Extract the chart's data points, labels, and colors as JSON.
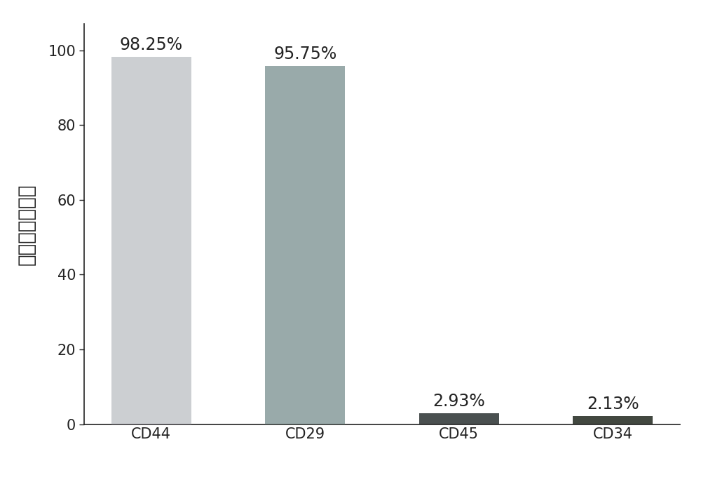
{
  "categories": [
    "CD44",
    "CD29",
    "CD45",
    "CD34"
  ],
  "values": [
    98.25,
    95.75,
    2.93,
    2.13
  ],
  "labels": [
    "98.25%",
    "95.75%",
    "2.93%",
    "2.13%"
  ],
  "bar_colors": [
    "#c8d4cc",
    "#a0a8b0",
    "#4a5050",
    "#424840"
  ],
  "ylabel": "细胞所占百分比",
  "ylim": [
    0,
    107
  ],
  "yticks": [
    0,
    20,
    40,
    60,
    80,
    100
  ],
  "background_color": "#ffffff",
  "label_fontsize": 17,
  "tick_fontsize": 15,
  "ylabel_fontsize": 20,
  "bar_width": 0.52
}
